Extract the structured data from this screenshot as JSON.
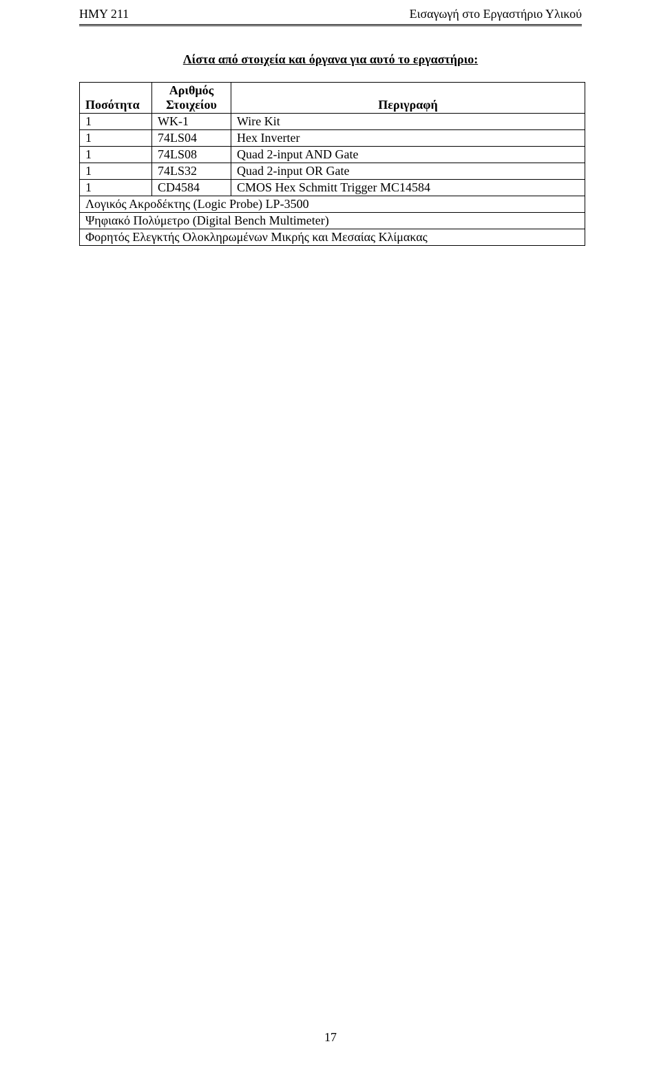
{
  "header": {
    "left": "ΗΜΥ 211",
    "right": "Εισαγωγή στο Εργαστήριο Υλικού"
  },
  "title": "Λίστα από στοιχεία και όργανα για αυτό το εργαστήριο:",
  "table": {
    "head": {
      "qty": "Ποσότητα",
      "part_l1": "Αριθμός",
      "part_l2": "Στοιχείου",
      "desc": "Περιγραφή"
    },
    "rows": [
      {
        "qty": "1",
        "part": "WK-1",
        "desc": "Wire Kit"
      },
      {
        "qty": "1",
        "part": "74LS04",
        "desc": "Hex Inverter"
      },
      {
        "qty": "1",
        "part": "74LS08",
        "desc": "Quad 2-input AND Gate"
      },
      {
        "qty": "1",
        "part": "74LS32",
        "desc": "Quad 2-input OR Gate"
      },
      {
        "qty": "1",
        "part": "CD4584",
        "desc": "CMOS Hex Schmitt Trigger MC14584"
      }
    ],
    "span_rows": [
      "Λογικός Ακροδέκτης (Logic Probe) LP-3500",
      "Ψηφιακό Πολύμετρο (Digital Bench Multimeter)",
      "Φορητός Ελεγκτής Ολοκληρωμένων Μικρής και Μεσαίας Κλίμακας"
    ]
  },
  "page_number": "17"
}
